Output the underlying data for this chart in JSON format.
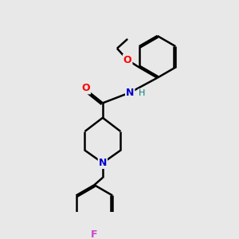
{
  "background_color": "#e8e8e8",
  "line_color": "#000000",
  "bond_width": 1.8,
  "figsize": [
    3.0,
    3.0
  ],
  "dpi": 100,
  "atom_colors": {
    "O": "#ff0000",
    "N": "#0000cc",
    "F": "#cc44cc",
    "H": "#008080",
    "C": "#000000"
  }
}
